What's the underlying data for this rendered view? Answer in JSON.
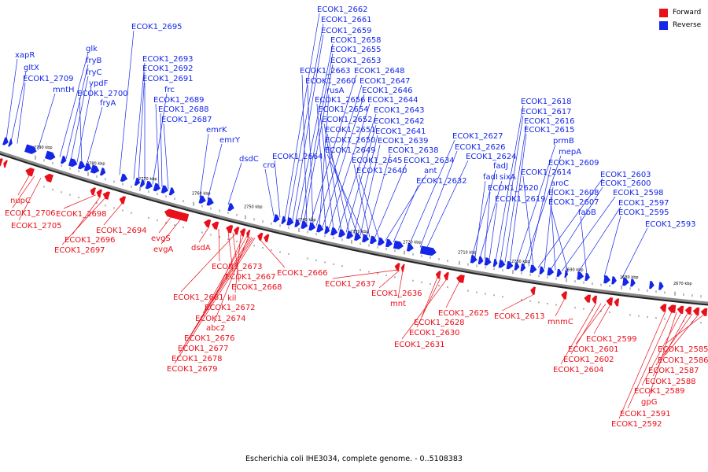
{
  "title": "Escherichia coli IHE3034, complete genome. - 0..5108383",
  "colors": {
    "forward": "#e8101a",
    "reverse": "#1426e8",
    "backbone": "#8a8a8a"
  },
  "legend": [
    {
      "name": "Forward",
      "color": "#e8101a"
    },
    {
      "name": "Reverse",
      "color": "#1426e8"
    }
  ],
  "ticks": [
    "2790 kbp",
    "2780 kbp",
    "2770 kbp",
    "2760 kbp",
    "2750 kbp",
    "2740 kbp",
    "2730 kbp",
    "2720 kbp",
    "2710 kbp",
    "2700 kbp",
    "2690 kbp",
    "2680 kbp",
    "2670 kbp"
  ],
  "reverse_labels": [
    "xapR",
    "gltX",
    "ECOK1_2709",
    "mntH",
    "glk",
    "fryB",
    "fryC",
    "ypdF",
    "ECOK1_2700",
    "fryA",
    "ECOK1_2695",
    "ECOK1_2693",
    "ECOK1_2692",
    "ECOK1_2691",
    "frc",
    "ECOK1_2689",
    "ECOK1_2688",
    "ECOK1_2687",
    "emrK",
    "emrY",
    "dsdC",
    "cro",
    "ECOK1_2664",
    "ECOK1_2662",
    "ECOK1_2661",
    "ECOK1_2659",
    "ECOK1_2658",
    "ECOK1_2655",
    "ECOK1_2653",
    "ECOK1_2663",
    "ECOK1_2648",
    "ECOK1_2660",
    "ECOK1_2647",
    "rusA",
    "ECOK1_2646",
    "ECOK1_2656",
    "ECOK1_2644",
    "ECOK1_2654",
    "ECOK1_2643",
    "ECOK1_2652",
    "ECOK1_2642",
    "ECOK1_2651",
    "ECOK1_2641",
    "ECOK1_2650",
    "ECOK1_2639",
    "ECOK1_2649",
    "ECOK1_2638",
    "ECOK1_2645",
    "ECOK1_2634",
    "ECOK1_2640",
    "ant",
    "ECOK1_2632",
    "ECOK1_2627",
    "ECOK1_2626",
    "ECOK1_2624",
    "fadJ",
    "fadI",
    "sixA",
    "ECOK1_2620",
    "ECOK1_2619",
    "ECOK1_2618",
    "ECOK1_2617",
    "ECOK1_2616",
    "ECOK1_2615",
    "prmB",
    "mepA",
    "ECOK1_2609",
    "ECOK1_2614",
    "ECOK1_2603",
    "aroC",
    "ECOK1_2600",
    "ECOK1_2608",
    "ECOK1_2598",
    "ECOK1_2607",
    "ECOK1_2597",
    "fabB",
    "ECOK1_2595",
    "ECOK1_2593"
  ],
  "forward_labels": [
    "nupC",
    "ECOK1_2706",
    "ECOK1_2705",
    "ECOK1_2698",
    "ECOK1_2696",
    "ECOK1_2697",
    "ECOK1_2694",
    "evgS",
    "evgA",
    "dsdA",
    "ECOK1_2673",
    "ECOK1_2667",
    "ECOK1_2668",
    "ECOK1_2666",
    "ECOK1_2681",
    "kil",
    "ECOK1_2672",
    "ECOK1_2674",
    "abc2",
    "ECOK1_2676",
    "ECOK1_2677",
    "ECOK1_2678",
    "ECOK1_2679",
    "ECOK1_2637",
    "ECOK1_2636",
    "mnt",
    "ECOK1_2625",
    "ECOK1_2628",
    "ECOK1_2630",
    "ECOK1_2631",
    "ECOK1_2613",
    "mnmC",
    "ECOK1_2599",
    "ECOK1_2601",
    "ECOK1_2602",
    "ECOK1_2604",
    "ECOK1_2585",
    "ECOK1_2586",
    "ECOK1_2587",
    "ECOK1_2588",
    "ECOK1_2589",
    "gpG",
    "ECOK1_2591",
    "ECOK1_2592"
  ]
}
